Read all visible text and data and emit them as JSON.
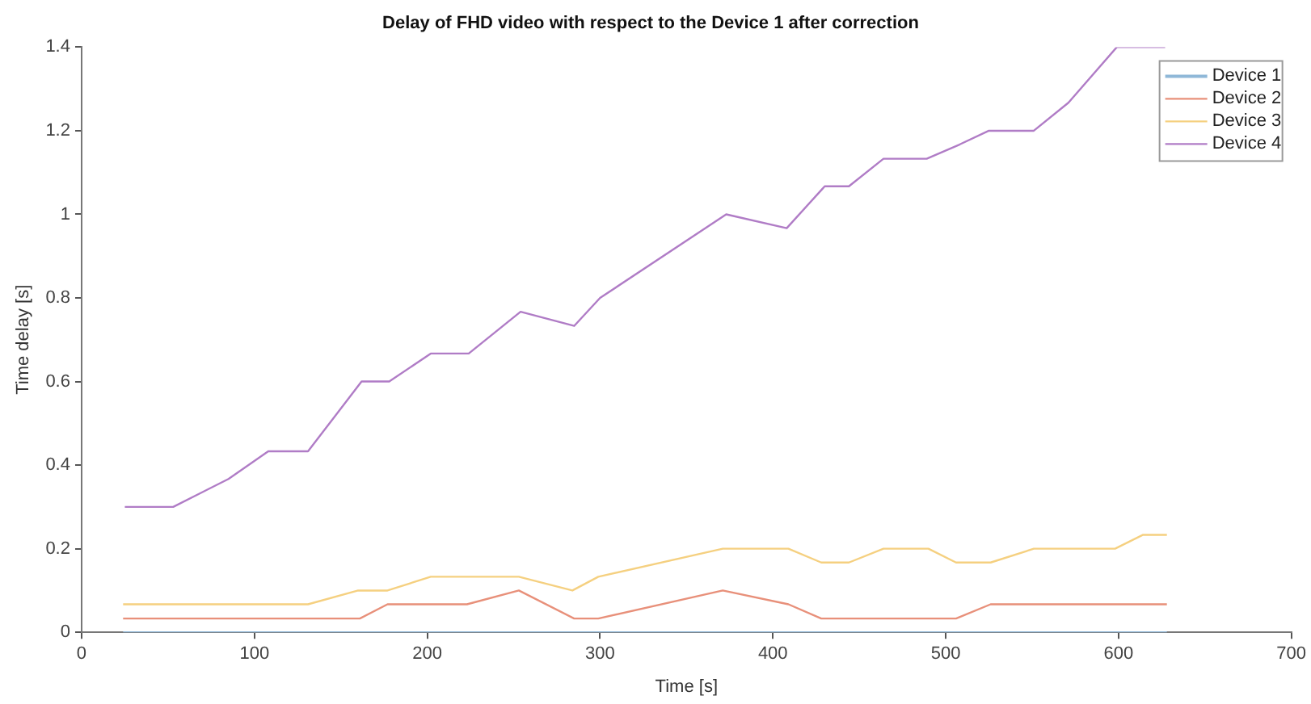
{
  "chart_data": {
    "type": "line",
    "title": "Delay of FHD video with respect to the Device 1 after correction",
    "xlabel": "Time [s]",
    "ylabel": "Time delay [s]",
    "xlim": [
      0,
      700
    ],
    "xticks": [
      0,
      100,
      200,
      300,
      400,
      500,
      600,
      700
    ],
    "ylim": [
      0,
      1.4
    ],
    "yticks": [
      0,
      0.2,
      0.4,
      0.6,
      0.8,
      1,
      1.2,
      1.4
    ],
    "grid": false,
    "legend": "top right",
    "marker": "none",
    "line_style": "solid",
    "series": [
      {
        "name": "Device 1",
        "color": "#8fb8d8",
        "x": [
          24,
          628
        ],
        "values": [
          0,
          0
        ]
      },
      {
        "name": "Device 2",
        "color": "#e8907a",
        "x": [
          24,
          161,
          177,
          223,
          253,
          285,
          299,
          371,
          409,
          428,
          506,
          526,
          628
        ],
        "values": [
          0.033,
          0.033,
          0.067,
          0.067,
          0.1,
          0.033,
          0.033,
          0.1,
          0.067,
          0.033,
          0.033,
          0.067,
          0.067
        ]
      },
      {
        "name": "Device 3",
        "color": "#f5d080",
        "x": [
          24,
          131,
          160,
          177,
          202,
          253,
          284,
          299,
          371,
          409,
          428,
          444,
          464,
          490,
          506,
          526,
          551,
          598,
          614,
          628
        ],
        "values": [
          0.067,
          0.067,
          0.1,
          0.1,
          0.133,
          0.133,
          0.1,
          0.133,
          0.2,
          0.2,
          0.167,
          0.167,
          0.2,
          0.2,
          0.167,
          0.167,
          0.2,
          0.2,
          0.233,
          0.233
        ]
      },
      {
        "name": "Device 4",
        "color": "#b07cc6",
        "x": [
          25,
          53,
          85,
          108,
          131,
          162,
          178,
          202,
          224,
          254,
          285,
          300,
          373,
          408,
          430,
          444,
          464,
          489,
          508,
          525,
          551,
          571,
          599,
          627
        ],
        "values": [
          0.3,
          0.3,
          0.367,
          0.433,
          0.433,
          0.6,
          0.6,
          0.667,
          0.667,
          0.767,
          0.733,
          0.8,
          1,
          0.967,
          1.067,
          1.067,
          1.133,
          1.133,
          1.167,
          1.2,
          1.2,
          1.267,
          1.4,
          1.4
        ]
      }
    ]
  }
}
